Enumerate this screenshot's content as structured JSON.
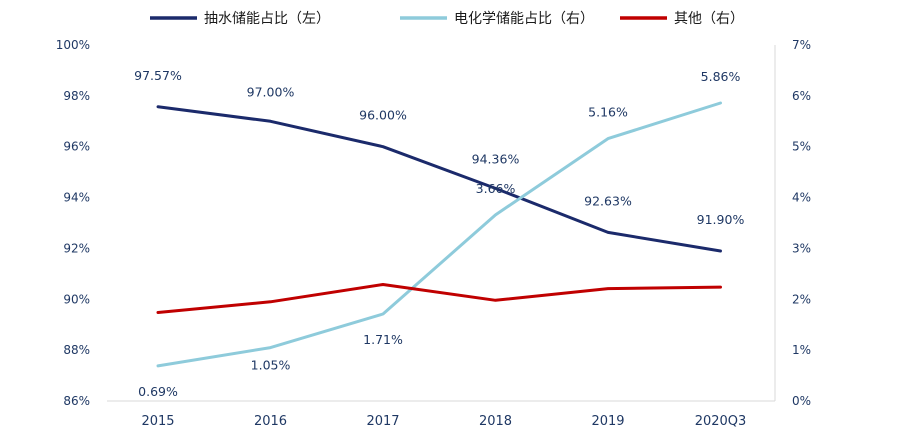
{
  "chart_data": {
    "type": "line",
    "categories": [
      "2015",
      "2016",
      "2017",
      "2018",
      "2019",
      "2020Q3"
    ],
    "series": [
      {
        "name": "抽水储能占比（左）",
        "axis": "left",
        "color": "#1b2a6b",
        "values": [
          97.57,
          97.0,
          96.0,
          94.36,
          92.63,
          91.9
        ],
        "labels": [
          "97.57%",
          "97.00%",
          "96.00%",
          "94.36%",
          "92.63%",
          "91.90%"
        ]
      },
      {
        "name": "电化学储能占比（右）",
        "axis": "right",
        "color": "#8ecbdb",
        "values": [
          0.69,
          1.05,
          1.71,
          3.66,
          5.16,
          5.86
        ],
        "labels": [
          "0.69%",
          "1.05%",
          "1.71%",
          "3.66%",
          "5.16%",
          "5.86%"
        ]
      },
      {
        "name": "其他（右）",
        "axis": "right",
        "color": "#c00000",
        "values": [
          1.74,
          1.95,
          2.29,
          1.98,
          2.21,
          2.24
        ]
      }
    ],
    "y_left": {
      "range": [
        86,
        100
      ],
      "ticks": [
        "86%",
        "88%",
        "90%",
        "92%",
        "94%",
        "96%",
        "98%",
        "100%"
      ]
    },
    "y_right": {
      "range": [
        0,
        7
      ],
      "ticks": [
        "0%",
        "1%",
        "2%",
        "3%",
        "4%",
        "5%",
        "6%",
        "7%"
      ]
    },
    "legend_position": "top",
    "grid": false
  }
}
